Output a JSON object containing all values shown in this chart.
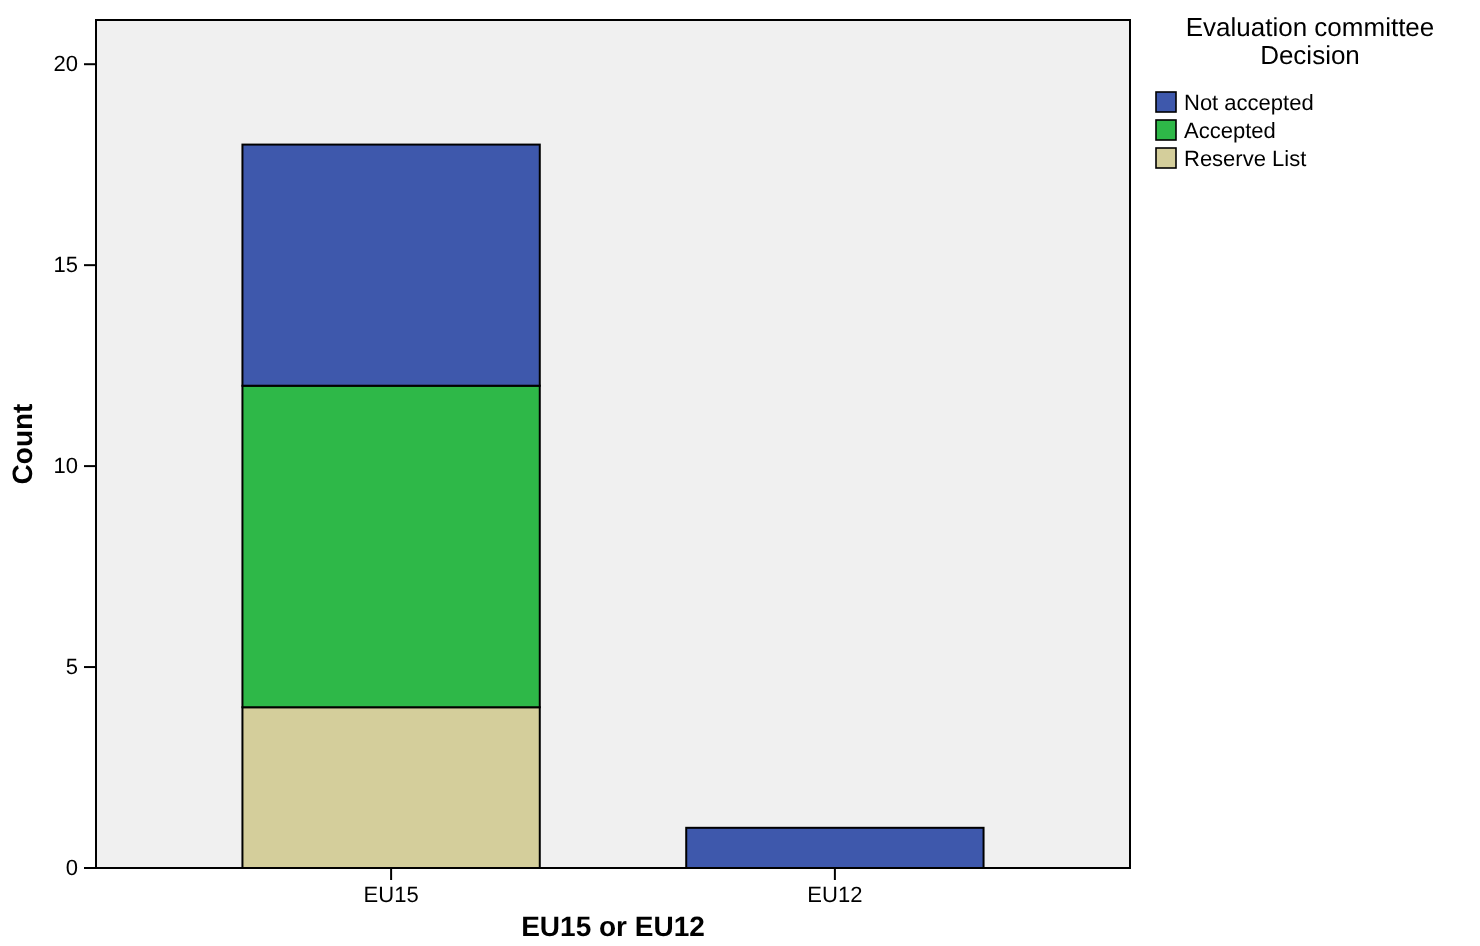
{
  "chart_data": {
    "type": "bar",
    "stacked": true,
    "xlabel": "EU15 or EU12",
    "ylabel": "Count",
    "legend_title": "Evaluation committee Decision",
    "categories": [
      "EU15",
      "EU12"
    ],
    "series": [
      {
        "name": "Reserve List",
        "color": "#d4ce9b",
        "values": [
          4,
          0
        ]
      },
      {
        "name": "Accepted",
        "color": "#2eb848",
        "values": [
          8,
          0
        ]
      },
      {
        "name": "Not accepted",
        "color": "#3e58ac",
        "values": [
          6,
          1
        ]
      }
    ],
    "ylim": [
      0,
      21.1
    ],
    "yticks": [
      0,
      5,
      10,
      15,
      20
    ],
    "grid": false,
    "legend": "top right"
  }
}
